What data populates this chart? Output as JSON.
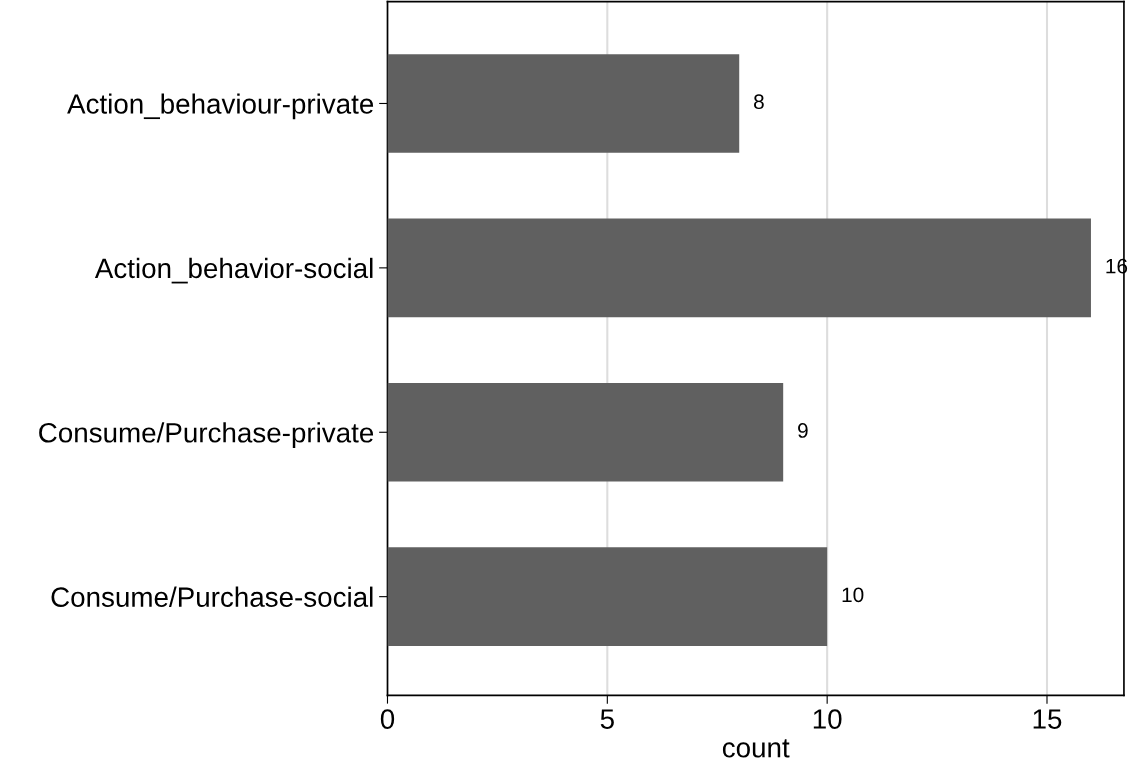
{
  "chart_data": {
    "type": "bar",
    "orientation": "horizontal",
    "xlabel": "count",
    "categories": [
      "Action_behaviour-private",
      "Action_behavior-social",
      "Consume/Purchase-private",
      "Consume/Purchase-social"
    ],
    "values": [
      8,
      16,
      9,
      10
    ],
    "color": "#606060",
    "xlim": [
      0,
      16.75
    ],
    "xticks": [
      0,
      5,
      10,
      15
    ],
    "grid": "x",
    "data_labels": true,
    "legend": false
  }
}
